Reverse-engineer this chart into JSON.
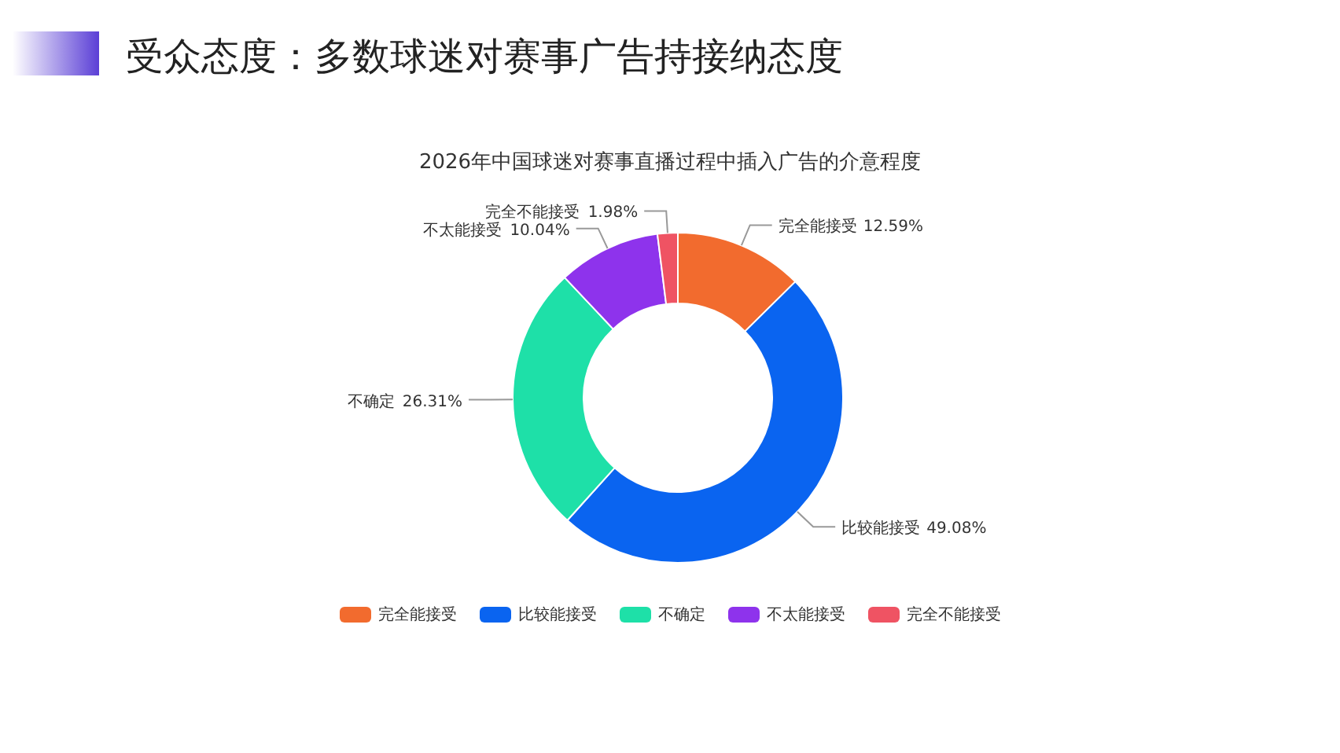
{
  "chart_data": {
    "type": "donut",
    "title": "受众态度：多数球迷对赛事广告持接纳态度",
    "subtitle": "2026年中国球迷对赛事直播过程中插入广告的介意程度",
    "categories": [
      "完全能接受",
      "比较能接受",
      "不确定",
      "不太能接受",
      "完全不能接受"
    ],
    "values": [
      12.59,
      49.08,
      26.31,
      10.04,
      1.98
    ],
    "colors": [
      "#f26b2e",
      "#0a64f0",
      "#1ee0a8",
      "#8e33ec",
      "#ef5363"
    ],
    "value_labels": [
      "12.59%",
      "49.08%",
      "26.31%",
      "10.04%",
      "1.98%"
    ],
    "legend": "bottom"
  }
}
